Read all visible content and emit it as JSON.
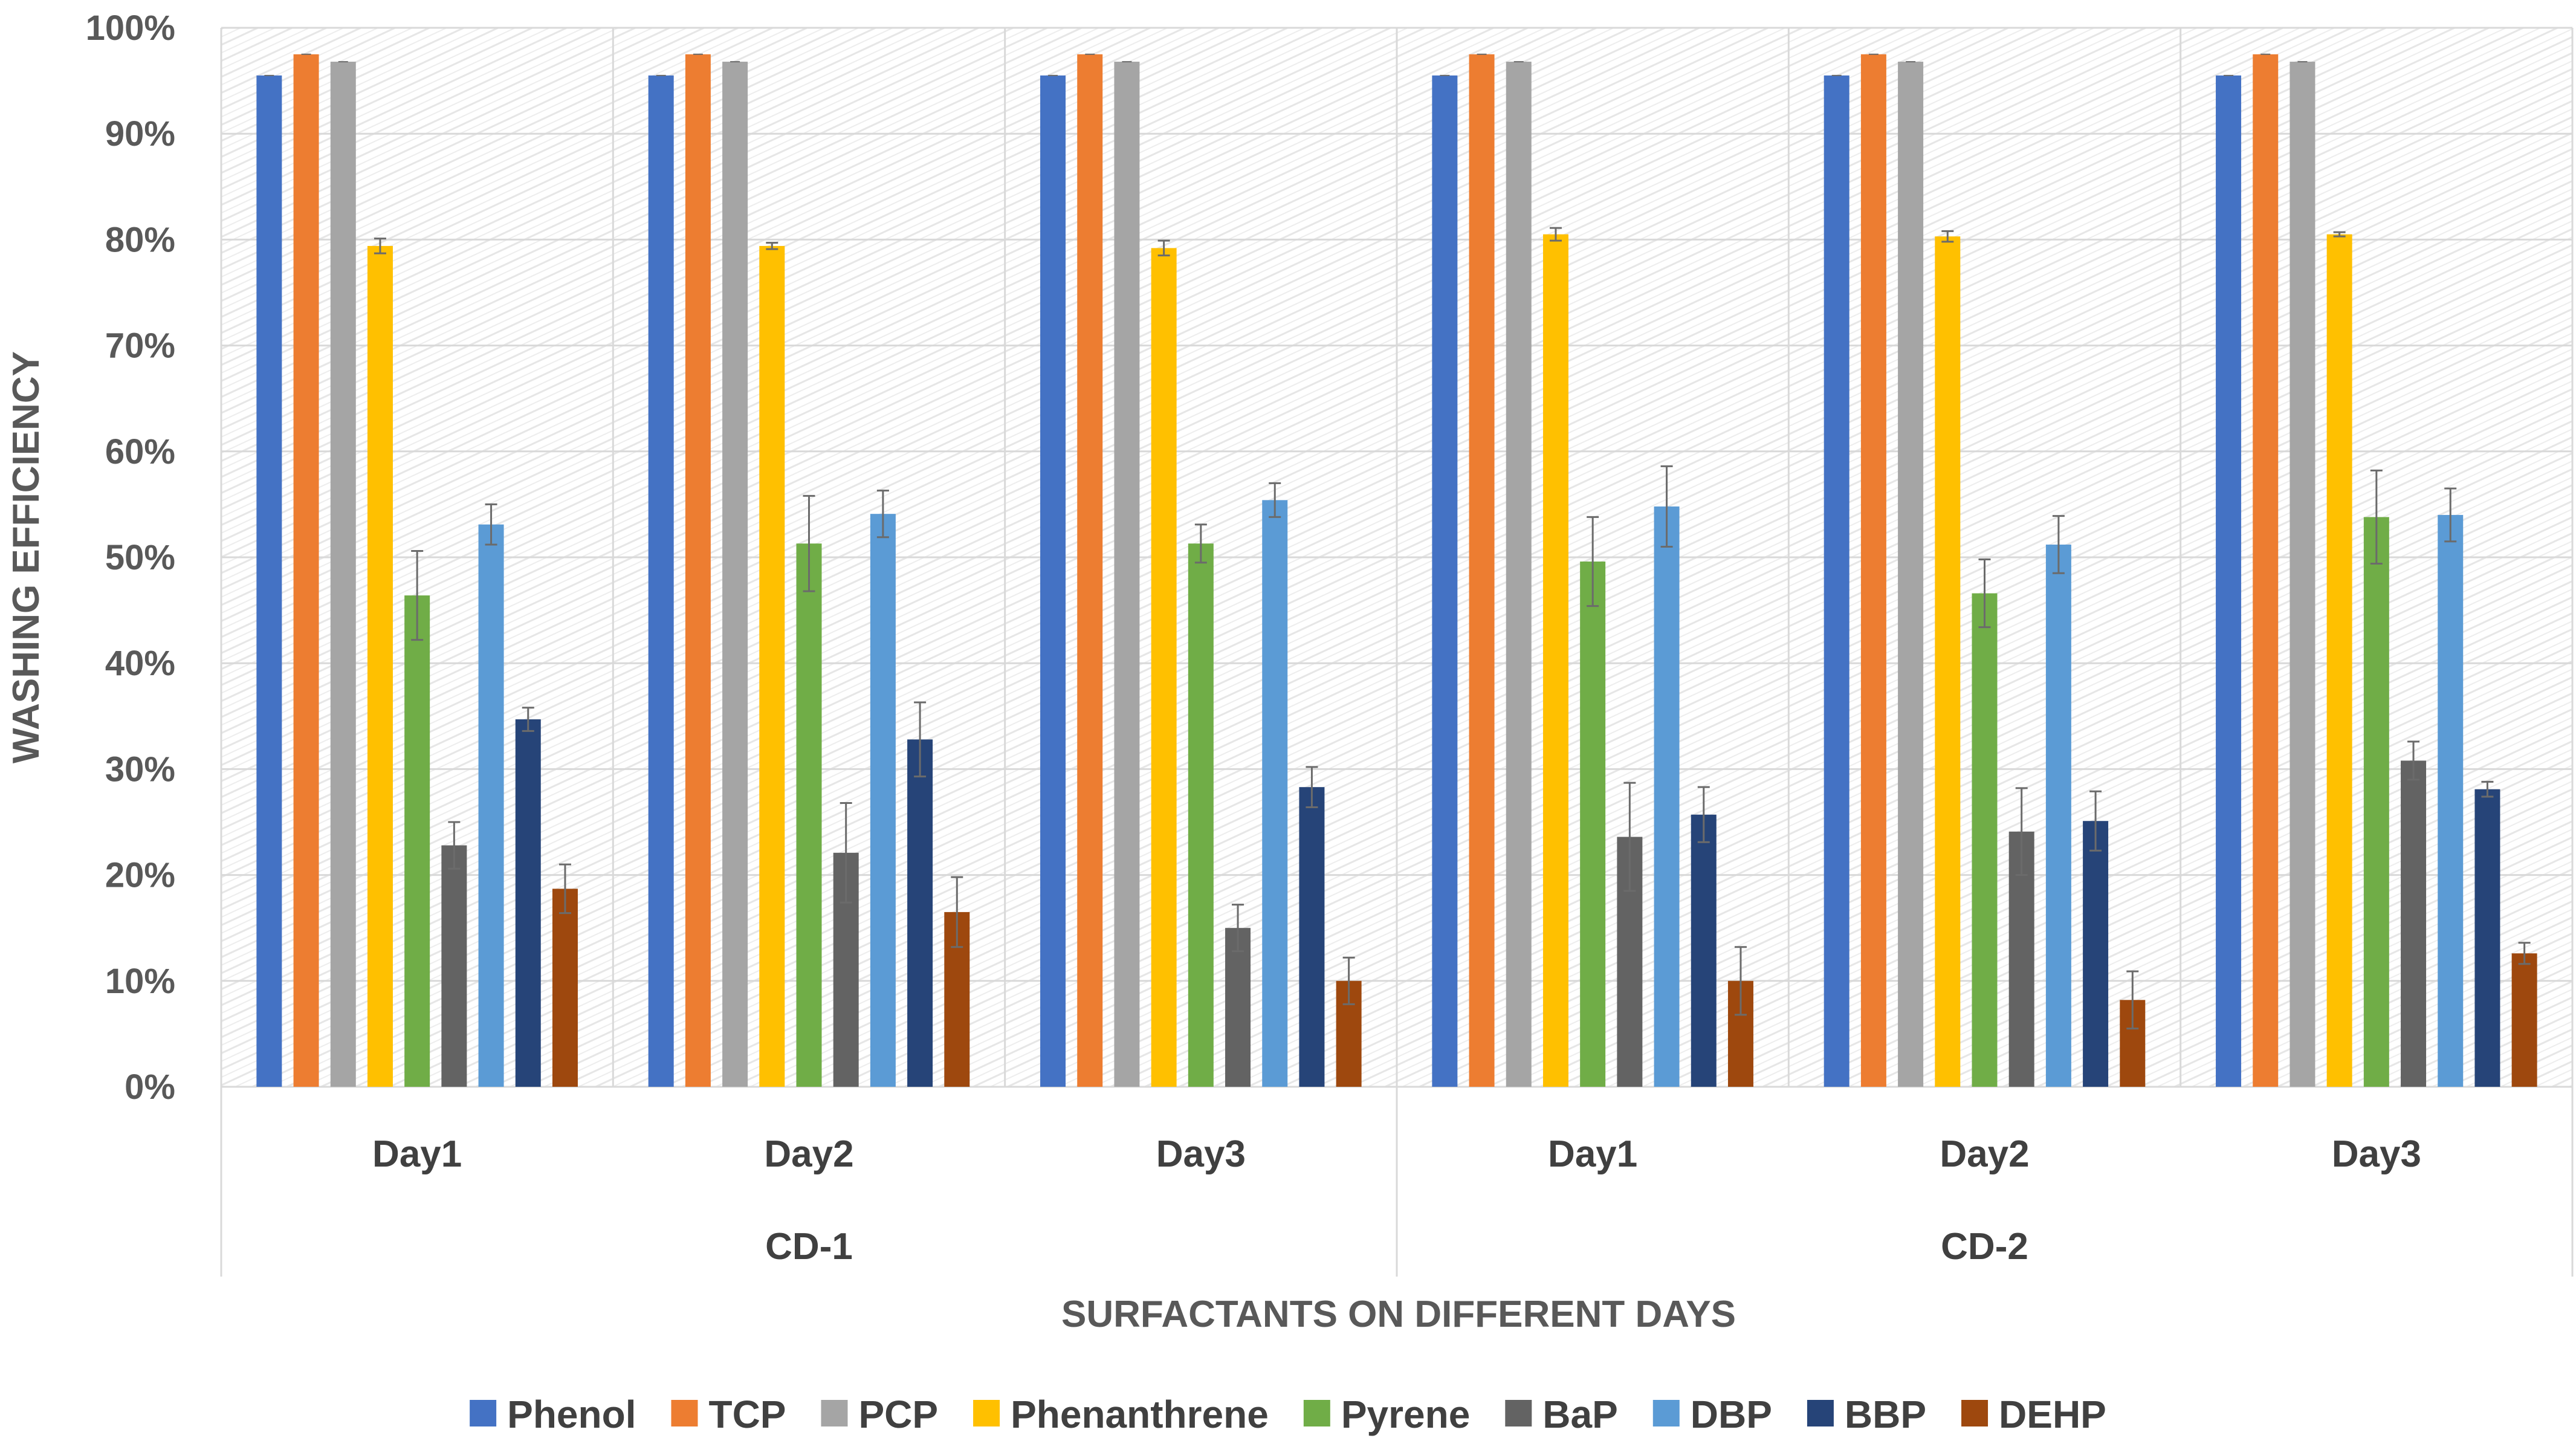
{
  "chart_data": {
    "type": "bar",
    "title": "",
    "xlabel": "SURFACTANTS ON DIFFERENT DAYS",
    "ylabel": "WASHING EFFICIENCY",
    "ylim": [
      0,
      100
    ],
    "yticks": [
      0,
      10,
      20,
      30,
      40,
      50,
      60,
      70,
      80,
      90,
      100
    ],
    "ytick_labels": [
      "0%",
      "10%",
      "20%",
      "30%",
      "40%",
      "50%",
      "60%",
      "70%",
      "80%",
      "90%",
      "100%"
    ],
    "groups": [
      {
        "name": "CD-1",
        "categories": [
          "Day1",
          "Day2",
          "Day3"
        ]
      },
      {
        "name": "CD-2",
        "categories": [
          "Day1",
          "Day2",
          "Day3"
        ]
      }
    ],
    "categories": [
      "Day1",
      "Day2",
      "Day3",
      "Day1",
      "Day2",
      "Day3"
    ],
    "grid": true,
    "legend_position": "bottom",
    "series": [
      {
        "name": "Phenol",
        "color": "#4472C4",
        "values": [
          95.5,
          95.5,
          95.5,
          95.5,
          95.5,
          95.5
        ],
        "errors": [
          0,
          0,
          0,
          0,
          0,
          0
        ]
      },
      {
        "name": "TCP",
        "color": "#ED7D31",
        "values": [
          97.5,
          97.5,
          97.5,
          97.5,
          97.5,
          97.5
        ],
        "errors": [
          0,
          0,
          0,
          0,
          0,
          0
        ]
      },
      {
        "name": "PCP",
        "color": "#A5A5A5",
        "values": [
          96.8,
          96.8,
          96.8,
          96.8,
          96.8,
          96.8
        ],
        "errors": [
          0,
          0,
          0,
          0,
          0,
          0
        ]
      },
      {
        "name": "Phenanthrene",
        "color": "#FFC000",
        "values": [
          79.4,
          79.4,
          79.2,
          80.5,
          80.3,
          80.5
        ],
        "errors": [
          0.7,
          0.3,
          0.7,
          0.6,
          0.5,
          0.2
        ]
      },
      {
        "name": "Pyrene",
        "color": "#70AD47",
        "values": [
          46.4,
          51.3,
          51.3,
          49.6,
          46.6,
          53.8
        ],
        "errors": [
          4.2,
          4.5,
          1.8,
          4.2,
          3.2,
          4.4
        ]
      },
      {
        "name": "BaP",
        "color": "#636363",
        "values": [
          22.8,
          22.1,
          15.0,
          23.6,
          24.1,
          30.8
        ],
        "errors": [
          2.2,
          4.7,
          2.2,
          5.1,
          4.1,
          1.8
        ]
      },
      {
        "name": "DBP",
        "color": "#5B9BD5",
        "values": [
          53.1,
          54.1,
          55.4,
          54.8,
          51.2,
          54.0
        ],
        "errors": [
          1.9,
          2.2,
          1.6,
          3.8,
          2.7,
          2.5
        ]
      },
      {
        "name": "BBP",
        "color": "#264478",
        "values": [
          34.7,
          32.8,
          28.3,
          25.7,
          25.1,
          28.1
        ],
        "errors": [
          1.1,
          3.5,
          1.9,
          2.6,
          2.8,
          0.7
        ]
      },
      {
        "name": "DEHP",
        "color": "#9E480E",
        "values": [
          18.7,
          16.5,
          10.0,
          10.0,
          8.2,
          12.6
        ],
        "errors": [
          2.3,
          3.3,
          2.2,
          3.2,
          2.7,
          1.0
        ]
      }
    ]
  }
}
